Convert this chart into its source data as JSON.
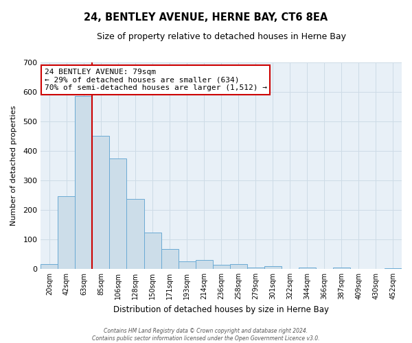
{
  "title": "24, BENTLEY AVENUE, HERNE BAY, CT6 8EA",
  "subtitle": "Size of property relative to detached houses in Herne Bay",
  "xlabel": "Distribution of detached houses by size in Herne Bay",
  "ylabel": "Number of detached properties",
  "bar_labels": [
    "20sqm",
    "42sqm",
    "63sqm",
    "85sqm",
    "106sqm",
    "128sqm",
    "150sqm",
    "171sqm",
    "193sqm",
    "214sqm",
    "236sqm",
    "258sqm",
    "279sqm",
    "301sqm",
    "322sqm",
    "344sqm",
    "366sqm",
    "387sqm",
    "409sqm",
    "430sqm",
    "452sqm"
  ],
  "bar_values": [
    15,
    247,
    585,
    450,
    375,
    237,
    122,
    67,
    25,
    31,
    13,
    15,
    5,
    10,
    0,
    5,
    0,
    5,
    0,
    0,
    3
  ],
  "bar_color": "#ccdde9",
  "bar_edge_color": "#6aaad4",
  "vline_index": 2.5,
  "vline_color": "#cc0000",
  "ylim": [
    0,
    700
  ],
  "yticks": [
    0,
    100,
    200,
    300,
    400,
    500,
    600,
    700
  ],
  "annotation_title": "24 BENTLEY AVENUE: 79sqm",
  "annotation_line1": "← 29% of detached houses are smaller (634)",
  "annotation_line2": "70% of semi-detached houses are larger (1,512) →",
  "annotation_box_facecolor": "#ffffff",
  "annotation_box_edgecolor": "#cc0000",
  "footer_line1": "Contains HM Land Registry data © Crown copyright and database right 2024.",
  "footer_line2": "Contains public sector information licensed under the Open Government Licence v3.0.",
  "grid_color": "#cddbe6",
  "plot_bg_color": "#e8f0f7",
  "fig_bg_color": "#ffffff"
}
